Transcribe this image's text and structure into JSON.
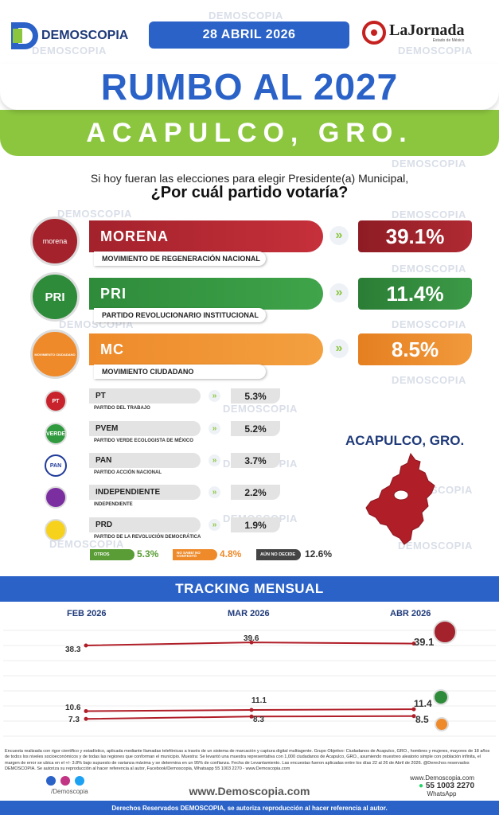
{
  "header": {
    "brand": "DEMOSCOPIA",
    "date": "28 ABRIL 2026",
    "partner": "LaJornada",
    "partner_sub": "Estado de México",
    "watermark": "DEMOSCOPIA"
  },
  "title": "RUMBO AL 2027",
  "city": "ACAPULCO, GRO.",
  "question": {
    "line1": "Si hoy fueran las elecciones para elegir Presidente(a) Municipal,",
    "line2": "¿Por cuál partido votaría?"
  },
  "colors": {
    "blue": "#2a62c8",
    "green": "#8cc63f",
    "morena": "#a3222c",
    "pri": "#2e8b3a",
    "mc": "#ee8a2a"
  },
  "chart_data": [
    {
      "type": "bar",
      "categories": [
        "MORENA",
        "PRI",
        "MC",
        "PT",
        "PVEM",
        "PAN",
        "INDEPENDIENTE",
        "PRD"
      ],
      "full_names": [
        "MOVIMIENTO DE REGENERACIÓN NACIONAL",
        "PARTIDO REVOLUCIONARIO INSTITUCIONAL",
        "MOVIMIENTO CIUDADANO",
        "PARTIDO DEL TRABAJO",
        "PARTIDO VERDE ECOLOGISTA DE MÉXICO",
        "PARTIDO ACCIÓN NACIONAL",
        "INDEPENDIENTE",
        "PARTIDO DE LA REVOLUCIÓN DEMOCRÁTICA"
      ],
      "values": [
        39.1,
        11.4,
        8.5,
        5.3,
        5.2,
        3.7,
        2.2,
        1.9
      ],
      "labels": [
        "39.1%",
        "11.4%",
        "8.5%",
        "5.3%",
        "5.2%",
        "3.7%",
        "2.2%",
        "1.9%"
      ],
      "logo_text": [
        "morena",
        "PRI",
        "MOVIMIENTO CIUDADANO",
        "PT",
        "VERDE",
        "PAN",
        "",
        ""
      ],
      "others": [
        {
          "name": "OTROS",
          "value": 5.3,
          "label": "5.3%",
          "color": "#5a9c35"
        },
        {
          "name": "NO SABE/ NO CONTESTÓ",
          "value": 4.8,
          "label": "4.8%",
          "color": "#ee8a2a"
        },
        {
          "name": "AÚN NO DECIDE",
          "value": 12.6,
          "label": "12.6%",
          "color": "#444444"
        }
      ]
    },
    {
      "type": "line",
      "title": "TRACKING MENSUAL",
      "x": [
        "FEB 2026",
        "MAR 2026",
        "ABR 2026"
      ],
      "series": [
        {
          "values": [
            38.3,
            39.6,
            39.1
          ],
          "labels": [
            "38.3",
            "39.6",
            "39.1"
          ]
        },
        {
          "values": [
            10.6,
            11.1,
            11.4
          ],
          "labels": [
            "10.6",
            "11.1",
            "11.4"
          ]
        },
        {
          "values": [
            7.3,
            8.3,
            8.5
          ],
          "labels": [
            "7.3",
            "8.3",
            "8.5"
          ]
        }
      ],
      "grid": true
    }
  ],
  "map": {
    "title": "ACAPULCO, GRO."
  },
  "footer": {
    "note": "Encuesta realizada con rigor científico y estadístico, aplicada mediante llamadas telefónicas a través de un sistema de marcación y captura digital multiagente. Grupo Objetivo: Ciudadanos de Acapulco, GRO., hombres y mujeres, mayores de 18 años de todos los niveles socioeconómicos y de todas las regiones que conforman el municipio. Muestra: Se levantó una muestra representativa con 1,000 ciudadanos de Acapulco, GRO., asumiendo muestreo aleatorio simple con población infinita, el margen de error se ubica en el +/- 3.8% bajo supuesto de varianza máxima y se determina en un 95% de confianza. Fecha de Levantamiento. Las encuestas fueron aplicadas entre los días 22 al 26 de Abril de 2026. @Derechos reservados DEMOSCOPIA. Se autoriza su reproducción al hacer referencia al autor, Facebook/Demoscopia, Whatsapp 55 1003 2270 - www.Demoscopia.com",
    "handle": "/Demoscopia",
    "site": "www.Demoscopia.com",
    "site_small": "www.Demoscopia.com",
    "phone": "55 1003 2270",
    "whatsapp": "WhatsApp",
    "rights": "Derechos Reservados DEMOSCOPIA, se autoriza reproducción al hacer referencia al autor."
  }
}
